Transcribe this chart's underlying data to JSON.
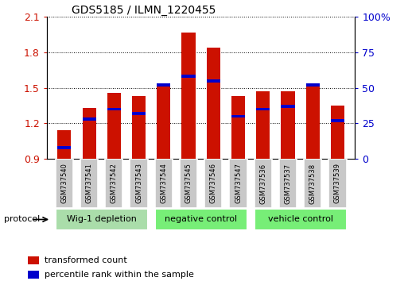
{
  "title": "GDS5185 / ILMN_1220455",
  "samples": [
    "GSM737540",
    "GSM737541",
    "GSM737542",
    "GSM737543",
    "GSM737544",
    "GSM737545",
    "GSM737546",
    "GSM737547",
    "GSM737536",
    "GSM737537",
    "GSM737538",
    "GSM737539"
  ],
  "transformed_counts": [
    1.14,
    1.33,
    1.46,
    1.43,
    1.53,
    1.97,
    1.84,
    1.43,
    1.47,
    1.47,
    1.52,
    1.35
  ],
  "percentile_ranks": [
    8,
    28,
    35,
    32,
    52,
    58,
    55,
    30,
    35,
    37,
    52,
    27
  ],
  "ylim": [
    0.9,
    2.1
  ],
  "yticks": [
    0.9,
    1.2,
    1.5,
    1.8,
    2.1
  ],
  "right_yticks": [
    0,
    25,
    50,
    75,
    100
  ],
  "bar_color": "#cc1100",
  "percentile_color": "#0000cc",
  "bg_color": "#c8c8c8",
  "groups": [
    {
      "label": "Wig-1 depletion",
      "indices": [
        0,
        1,
        2,
        3
      ],
      "color": "#aaddaa"
    },
    {
      "label": "negative control",
      "indices": [
        4,
        5,
        6,
        7
      ],
      "color": "#77ee77"
    },
    {
      "label": "vehicle control",
      "indices": [
        8,
        9,
        10,
        11
      ],
      "color": "#77ee77"
    }
  ],
  "protocol_label": "protocol",
  "legend_transformed": "transformed count",
  "legend_percentile": "percentile rank within the sample",
  "bar_width": 0.55
}
